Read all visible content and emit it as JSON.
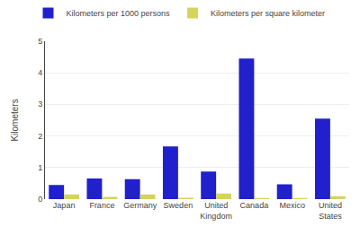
{
  "chart_data": {
    "type": "bar",
    "categories": [
      "Japan",
      "France",
      "Germany",
      "Sweden",
      "United\nKingdom",
      "Canada",
      "Mexico",
      "United\nStates"
    ],
    "series": [
      {
        "name": "Kilometers per 1000 persons",
        "color": "#2020cc",
        "values": [
          0.45,
          0.65,
          0.63,
          1.67,
          0.87,
          4.45,
          0.47,
          2.55
        ]
      },
      {
        "name": "Kilometers per square kilometer",
        "color": "#d4d45a",
        "values": [
          0.15,
          0.07,
          0.15,
          0.04,
          0.18,
          0.03,
          0.03,
          0.09
        ]
      }
    ],
    "ylabel": "Kilometers",
    "ylim": [
      0,
      5
    ],
    "yticks": [
      0,
      1,
      2,
      3,
      4,
      5
    ],
    "grid": true,
    "legend": "top"
  }
}
